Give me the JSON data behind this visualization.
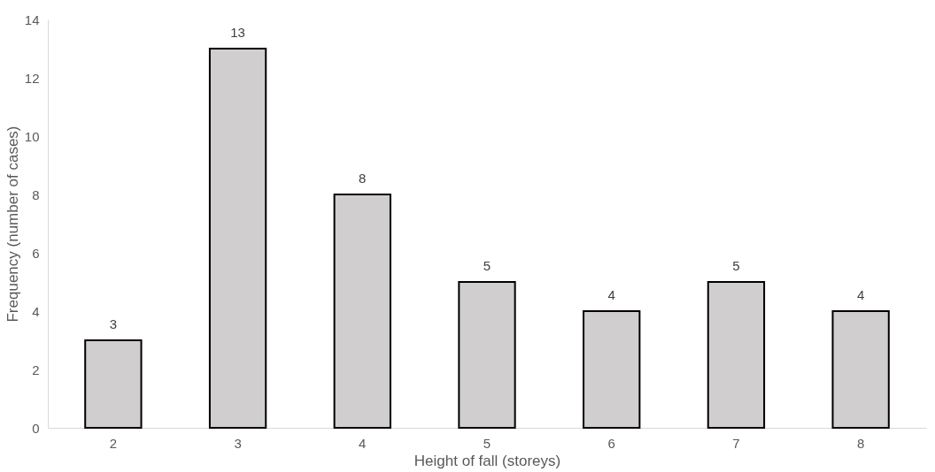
{
  "chart_data": {
    "type": "bar",
    "xlabel": "Height of fall (storeys)",
    "ylabel": "Frequency (number of cases)",
    "categories": [
      "2",
      "3",
      "4",
      "5",
      "6",
      "7",
      "8"
    ],
    "values": [
      3,
      13,
      8,
      5,
      4,
      5,
      4
    ],
    "color": "#d0cece",
    "ylim": [
      0,
      14
    ],
    "yticks": [
      0,
      2,
      4,
      6,
      8,
      10,
      12,
      14
    ],
    "grid": false,
    "data_labels": true
  }
}
